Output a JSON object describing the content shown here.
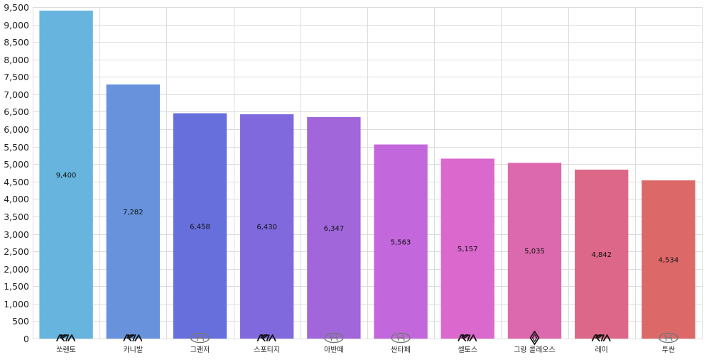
{
  "chart_data": {
    "type": "bar",
    "title": "",
    "xlabel": "",
    "ylabel": "",
    "ylim": [
      0,
      9500
    ],
    "yticks": [
      0,
      500,
      1000,
      1500,
      2000,
      2500,
      3000,
      3500,
      4000,
      4500,
      5000,
      5500,
      6000,
      6500,
      7000,
      7500,
      8000,
      8500,
      9000,
      9500
    ],
    "ytick_labels": [
      "0",
      "500",
      "1,000",
      "1,500",
      "2,000",
      "2,500",
      "3,000",
      "3,500",
      "4,000",
      "4,500",
      "5,000",
      "5,500",
      "6,000",
      "6,500",
      "7,000",
      "7,500",
      "8,000",
      "8,500",
      "9,000",
      "9,500"
    ],
    "grid": true,
    "categories": [
      "쏘렌토",
      "카니발",
      "그랜저",
      "스포티지",
      "아반떼",
      "싼타페",
      "셀토스",
      "그랑 콜레오스",
      "레이",
      "투싼"
    ],
    "values": [
      9400,
      7282,
      6458,
      6430,
      6347,
      5563,
      5157,
      5035,
      4842,
      4534
    ],
    "value_labels": [
      "9,400",
      "7,282",
      "6,458",
      "6,430",
      "6,347",
      "5,563",
      "5,157",
      "5,035",
      "4,842",
      "4,534"
    ],
    "brand_icons": [
      "kia-logo-icon",
      "kia-logo-icon",
      "hyundai-logo-icon",
      "kia-logo-icon",
      "hyundai-logo-icon",
      "hyundai-logo-icon",
      "kia-logo-icon",
      "renault-logo-icon",
      "kia-logo-icon",
      "hyundai-logo-icon"
    ],
    "colors": [
      "#67b5de",
      "#6893dc",
      "#676fdc",
      "#7f69dd",
      "#a066da",
      "#c367dc",
      "#da68cd",
      "#dc69ad",
      "#dd6788",
      "#dd6868"
    ]
  }
}
